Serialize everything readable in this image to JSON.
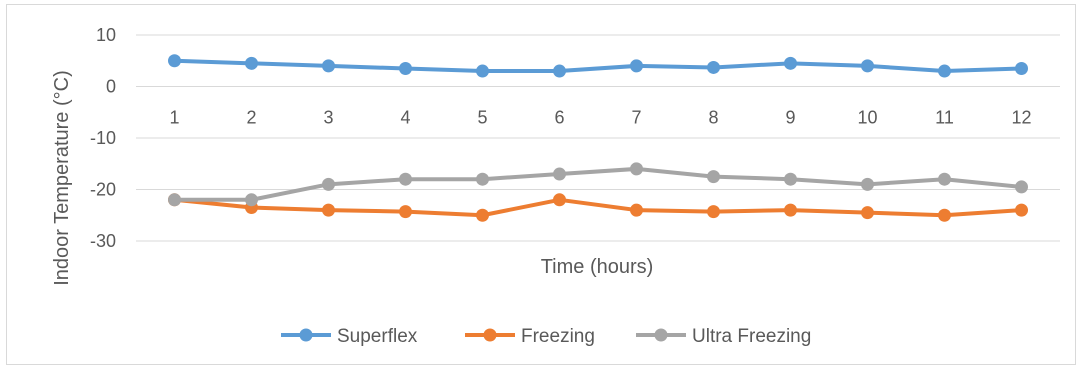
{
  "chart_data": {
    "type": "line",
    "title": "",
    "xlabel": "Time (hours)",
    "ylabel": "Indoor Temperature (°C)",
    "ylim": [
      -30,
      10
    ],
    "yticks": [
      "10",
      "0",
      "-10",
      "-20",
      "-30"
    ],
    "categories": [
      "1",
      "2",
      "3",
      "4",
      "5",
      "6",
      "7",
      "8",
      "9",
      "10",
      "11",
      "12"
    ],
    "grid": true,
    "legend_position": "bottom",
    "series": [
      {
        "name": "Superflex",
        "color": "#5b9bd5",
        "values": [
          5,
          4.5,
          4,
          3.5,
          3,
          3,
          4,
          3.7,
          4.5,
          4,
          3,
          3.5
        ]
      },
      {
        "name": "Freezing",
        "color": "#ed7d31",
        "values": [
          -22,
          -23.5,
          -24,
          -24.3,
          -25,
          -22,
          -24,
          -24.3,
          -24,
          -24.5,
          -25,
          -24
        ]
      },
      {
        "name": "Ultra Freezing",
        "color": "#a5a5a5",
        "values": [
          -22,
          -22,
          -19,
          -18,
          -18,
          -17,
          -16,
          -17.5,
          -18,
          -19,
          -18,
          -19.5
        ]
      }
    ]
  }
}
